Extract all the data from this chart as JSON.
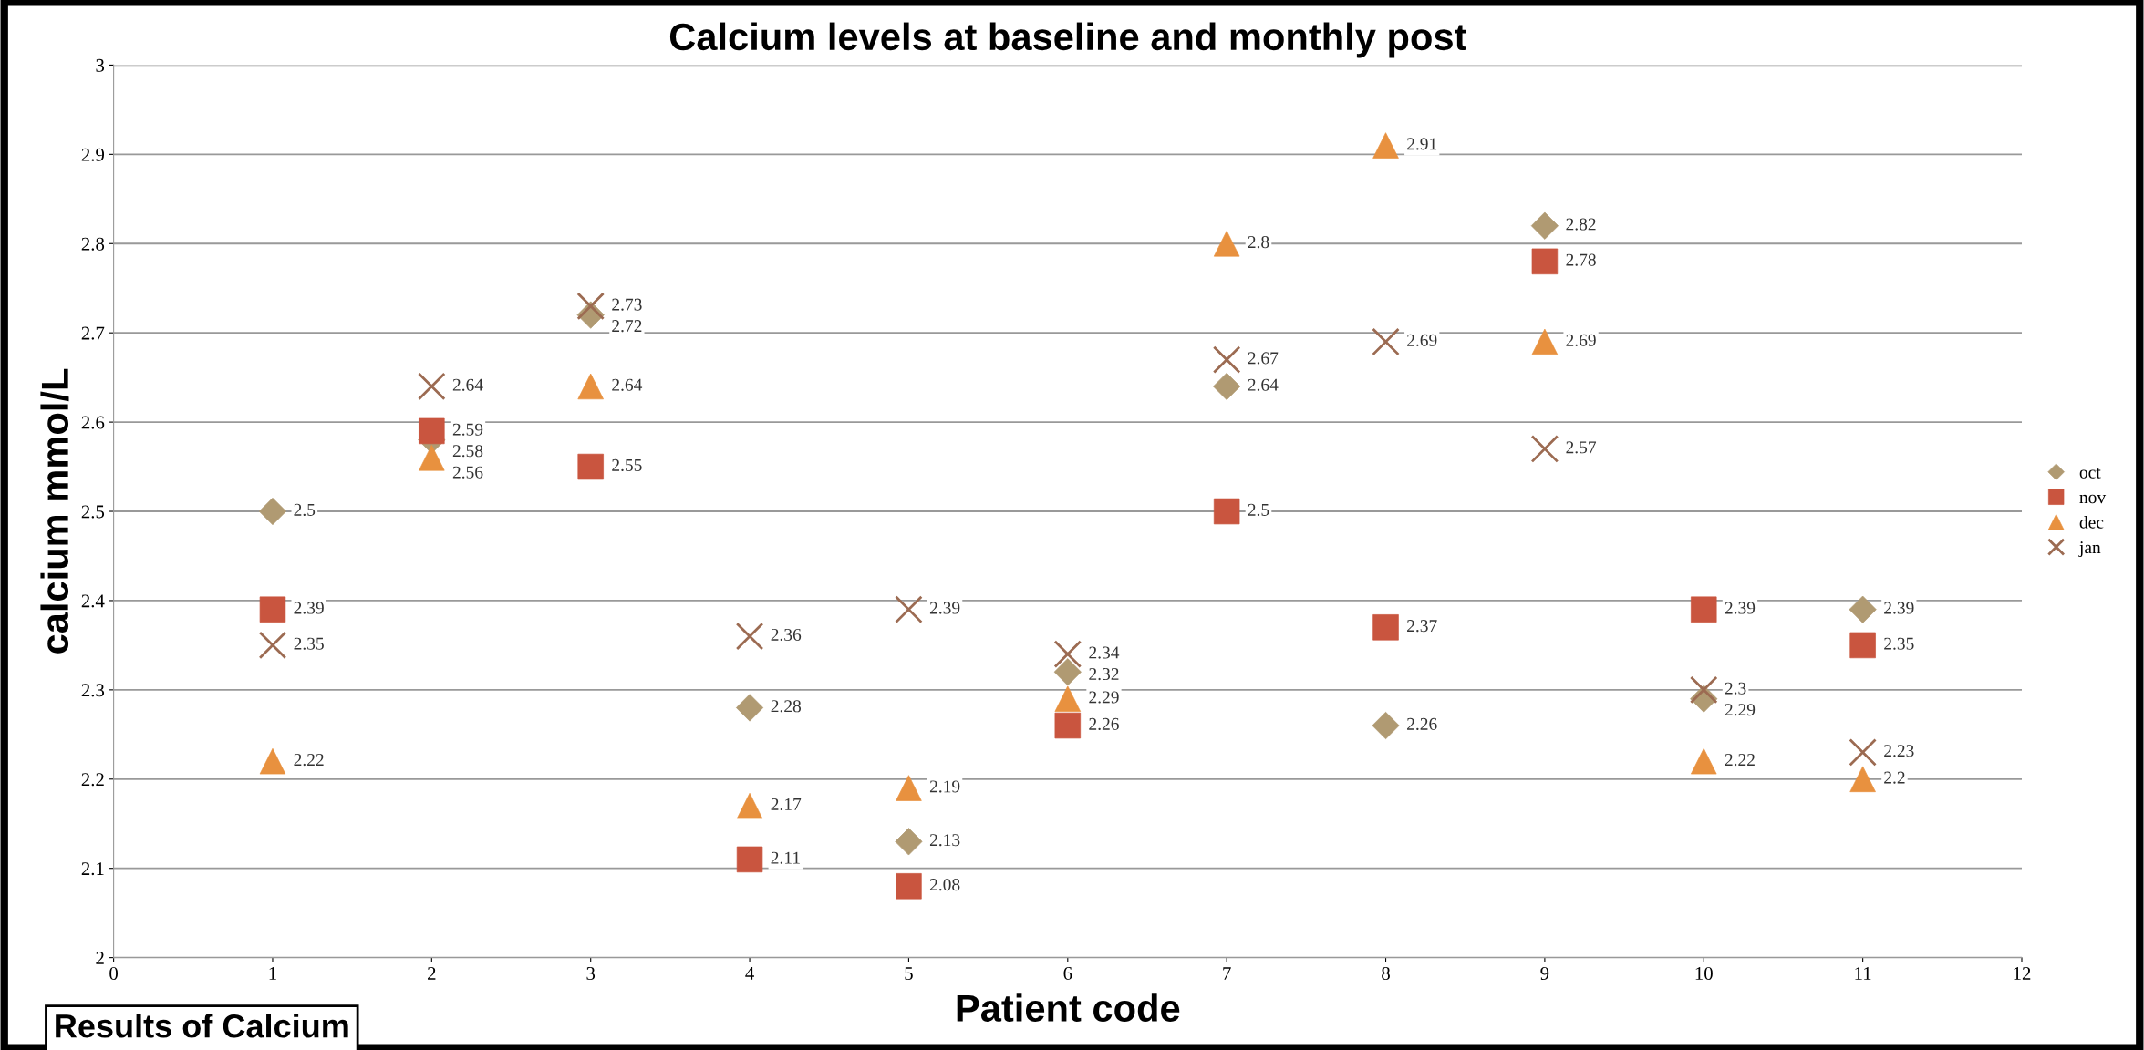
{
  "chart_data": {
    "type": "scatter",
    "title": "Calcium levels at baseline and monthly post",
    "xlabel": "Patient code",
    "ylabel": "calcium mmol/L",
    "x": [
      1,
      2,
      3,
      4,
      5,
      6,
      7,
      8,
      9,
      10,
      11
    ],
    "series": [
      {
        "name": "oct",
        "color": "#b09a72",
        "marker": "diamond",
        "values": [
          2.5,
          2.58,
          2.72,
          2.28,
          2.13,
          2.32,
          2.64,
          2.26,
          2.82,
          2.29,
          2.39
        ]
      },
      {
        "name": "nov",
        "color": "#c9553f",
        "marker": "square",
        "values": [
          2.39,
          2.59,
          2.55,
          2.11,
          2.08,
          2.26,
          2.5,
          2.37,
          2.78,
          2.39,
          2.35
        ]
      },
      {
        "name": "dec",
        "color": "#e8913f",
        "marker": "triangle",
        "values": [
          2.22,
          2.56,
          2.64,
          2.17,
          2.19,
          2.29,
          2.8,
          2.91,
          2.69,
          2.22,
          2.2
        ]
      },
      {
        "name": "jan",
        "color": "#9c6b52",
        "marker": "cross",
        "values": [
          2.35,
          2.64,
          2.73,
          2.36,
          2.39,
          2.34,
          2.67,
          2.69,
          2.57,
          2.3,
          2.23
        ]
      }
    ],
    "xlim": [
      0,
      12
    ],
    "xticks": [
      0,
      1,
      2,
      3,
      4,
      5,
      6,
      7,
      8,
      9,
      10,
      11,
      12
    ],
    "ylim": [
      2,
      3
    ],
    "yticks": [
      2,
      2.1,
      2.2,
      2.3,
      2.4,
      2.5,
      2.6,
      2.7,
      2.8,
      2.9,
      3
    ],
    "grid": "y",
    "legend": "right",
    "data_labels": true,
    "annotations": [
      "Results of Calcium"
    ]
  }
}
